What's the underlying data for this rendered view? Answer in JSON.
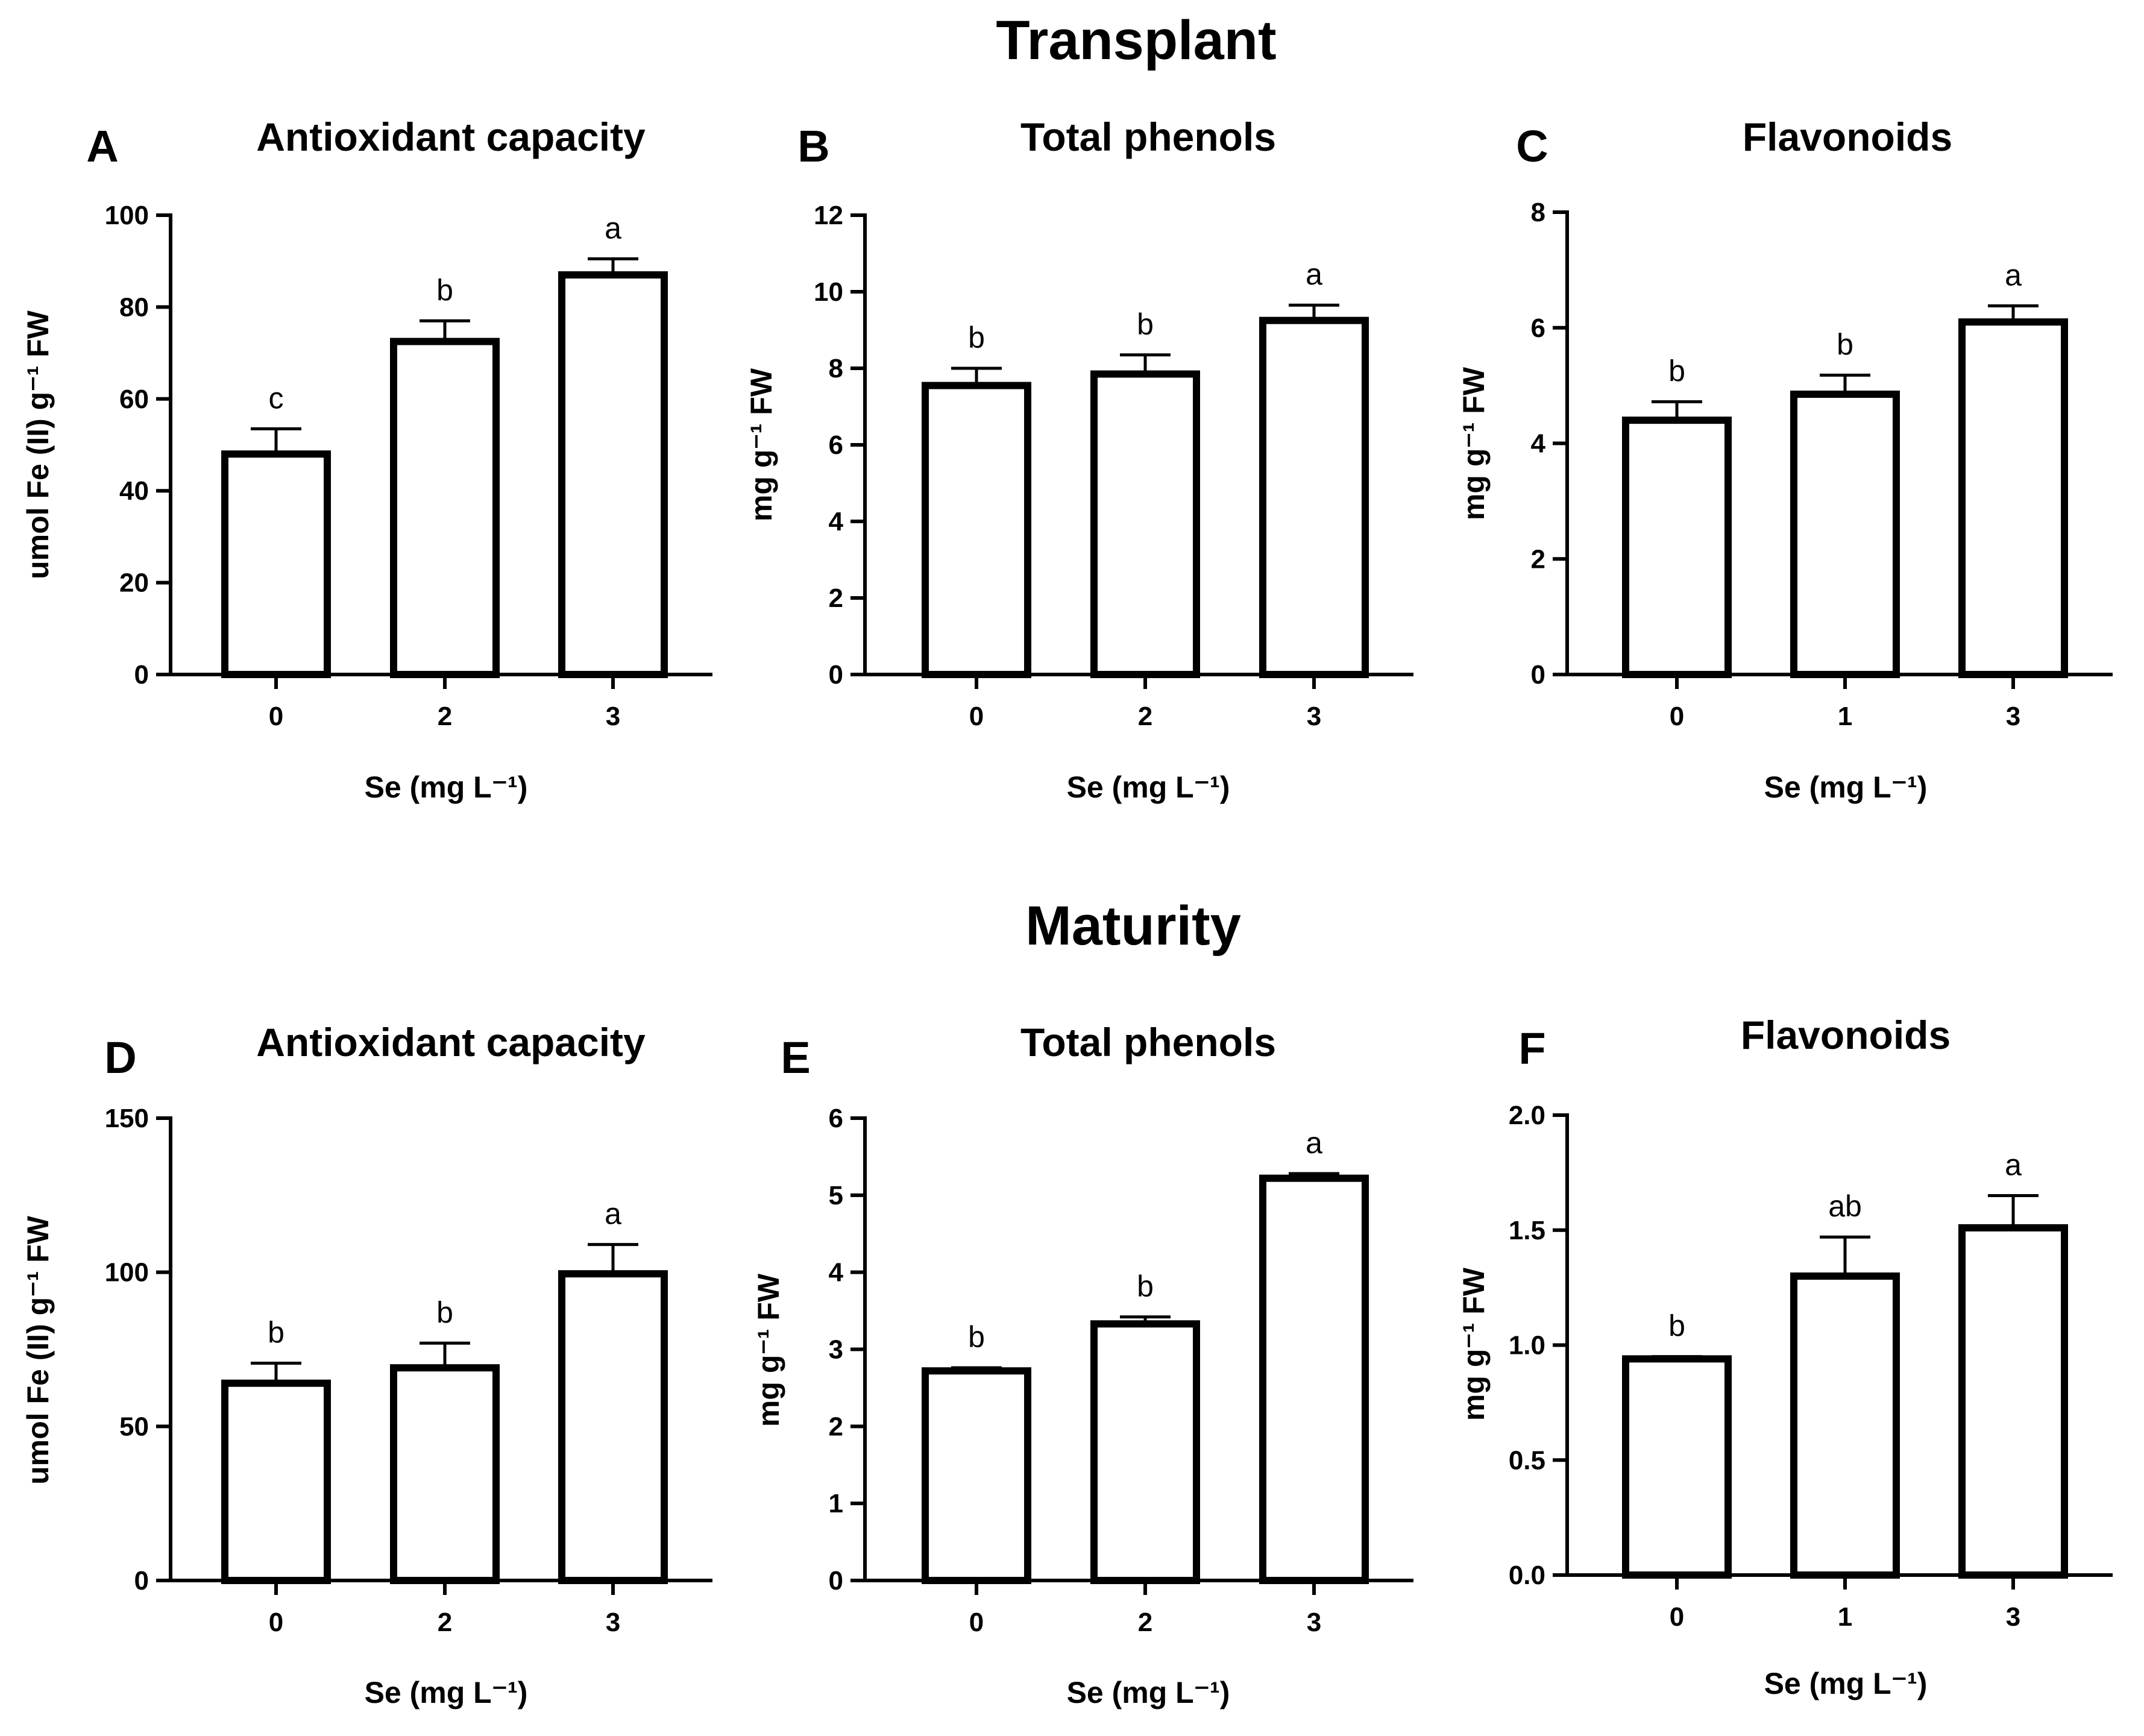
{
  "sections": [
    {
      "title": "Transplant"
    },
    {
      "title": "Maturity"
    }
  ],
  "chart_data": [
    {
      "panel": "A",
      "section": "Transplant",
      "type": "bar",
      "title": "Antioxidant capacity",
      "categories": [
        "0",
        "2",
        "3"
      ],
      "values": [
        48,
        72.5,
        87
      ],
      "errors": [
        5.5,
        4.5,
        3.5
      ],
      "sig_labels": [
        "c",
        "b",
        "a"
      ],
      "xlabel": "Se (mg L⁻¹)",
      "ylabel": "umol Fe (II) g⁻¹ FW",
      "ylim": [
        0,
        100
      ],
      "yticks": [
        "0",
        "20",
        "40",
        "60",
        "80",
        "100"
      ]
    },
    {
      "panel": "B",
      "section": "Transplant",
      "type": "bar",
      "title": "Total phenols",
      "categories": [
        "0",
        "2",
        "3"
      ],
      "values": [
        7.55,
        7.85,
        9.25
      ],
      "errors": [
        0.45,
        0.5,
        0.4
      ],
      "sig_labels": [
        "b",
        "b",
        "a"
      ],
      "xlabel": "Se (mg L⁻¹)",
      "ylabel": "mg g⁻¹ FW",
      "ylim": [
        0,
        12
      ],
      "yticks": [
        "0",
        "2",
        "4",
        "6",
        "8",
        "10",
        "12"
      ]
    },
    {
      "panel": "C",
      "section": "Transplant",
      "type": "bar",
      "title": "Flavonoids",
      "categories": [
        "0",
        "1",
        "3"
      ],
      "values": [
        4.4,
        4.85,
        6.1
      ],
      "errors": [
        0.32,
        0.33,
        0.28
      ],
      "sig_labels": [
        "b",
        "b",
        "a"
      ],
      "xlabel": "Se (mg L⁻¹)",
      "ylabel": "mg g⁻¹ FW",
      "ylim": [
        0,
        8
      ],
      "yticks": [
        "0",
        "2",
        "4",
        "6",
        "8"
      ]
    },
    {
      "panel": "D",
      "section": "Maturity",
      "type": "bar",
      "title": "Antioxidant capacity",
      "categories": [
        "0",
        "2",
        "3"
      ],
      "values": [
        64,
        69,
        99.5
      ],
      "errors": [
        6.5,
        8,
        9.5
      ],
      "sig_labels": [
        "b",
        "b",
        "a"
      ],
      "xlabel": "Se (mg L⁻¹)",
      "ylabel": "umol Fe (II) g⁻¹ FW",
      "ylim": [
        0,
        150
      ],
      "yticks": [
        "0",
        "50",
        "100",
        "150"
      ]
    },
    {
      "panel": "E",
      "section": "Maturity",
      "type": "bar",
      "title": "Total phenols",
      "categories": [
        "0",
        "2",
        "3"
      ],
      "values": [
        2.72,
        3.33,
        5.22
      ],
      "errors": [
        0.04,
        0.09,
        0.06
      ],
      "sig_labels": [
        "b",
        "b",
        "a"
      ],
      "xlabel": "Se (mg L⁻¹)",
      "ylabel": "mg g⁻¹ FW",
      "ylim": [
        0,
        6
      ],
      "yticks": [
        "0",
        "1",
        "2",
        "3",
        "4",
        "5",
        "6"
      ]
    },
    {
      "panel": "F",
      "section": "Maturity",
      "type": "bar",
      "title": "Flavonoids",
      "categories": [
        "0",
        "1",
        "3"
      ],
      "values": [
        0.94,
        1.3,
        1.51
      ],
      "errors": [
        0.01,
        0.17,
        0.14
      ],
      "sig_labels": [
        "b",
        "ab",
        "a"
      ],
      "xlabel": "Se (mg L⁻¹)",
      "ylabel": "mg g⁻¹ FW",
      "ylim": [
        0,
        2
      ],
      "yticks": [
        "0.0",
        "0.5",
        "1.0",
        "1.5",
        "2.0"
      ]
    }
  ]
}
